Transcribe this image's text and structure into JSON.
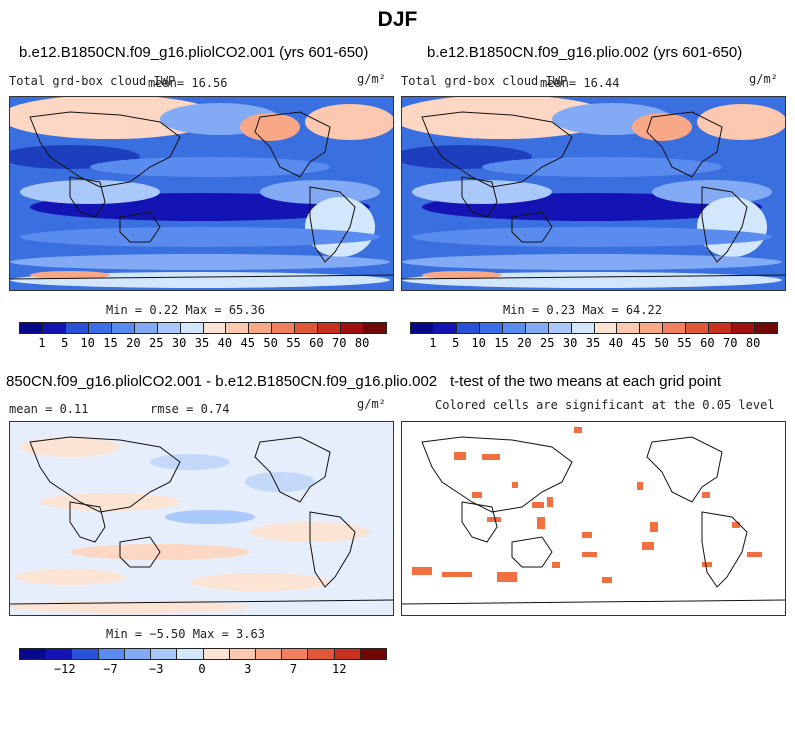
{
  "title": "DJF",
  "panels": {
    "p1": {
      "title": "b.e12.B1850CN.f09_g16.pliolCO2.001 (yrs 601-650)",
      "left_label": "Total grd-box cloud IWP",
      "mean_label": "mean=  16.56",
      "units": "g/m²",
      "minmax": "Min =   0.22 Max =  65.36"
    },
    "p2": {
      "title": "b.e12.B1850CN.f09_g16.plio.002 (yrs 601-650)",
      "left_label": "Total grd-box cloud IWP",
      "mean_label": "mean=  16.44",
      "units": "g/m²",
      "minmax": "Min =   0.23 Max =  64.22"
    },
    "p3": {
      "title": "850CN.f09_g16.pliolCO2.001 - b.e12.B1850CN.f09_g16.plio.002",
      "mean_label": "mean =    0.11",
      "rmse_label": "rmse =    0.74",
      "units": "g/m²",
      "minmax": "Min =  −5.50 Max =   3.63"
    },
    "p4": {
      "title": "t-test of the two means at each grid point",
      "subtitle": "Colored cells are significant at the 0.05 level"
    }
  },
  "colorbar_top": {
    "colors": [
      "#08088a",
      "#1414b4",
      "#2a52d8",
      "#3c6ee8",
      "#5a8cf0",
      "#82aaf5",
      "#aac8fa",
      "#d2e6fc",
      "#fce4d4",
      "#fcc8b0",
      "#f8a886",
      "#f08060",
      "#e05838",
      "#c83020",
      "#a01010",
      "#700808"
    ],
    "labels": [
      "1",
      "5",
      "10",
      "15",
      "20",
      "25",
      "30",
      "35",
      "40",
      "45",
      "50",
      "55",
      "60",
      "70",
      "80"
    ]
  },
  "colorbar_diff": {
    "colors": [
      "#08088a",
      "#1414b4",
      "#2a52d8",
      "#5a8cf0",
      "#82aaf5",
      "#aac8fa",
      "#d2e6fc",
      "#fce4d4",
      "#fcc8b0",
      "#f8a886",
      "#f08060",
      "#e05838",
      "#c83020",
      "#700808"
    ],
    "labels": [
      "−12",
      "−7",
      "−3",
      "0",
      "3",
      "7",
      "12"
    ]
  },
  "colors": {
    "ocean_base": "#3a6fe0",
    "diff_base": "#e6eefc",
    "significant": "#f07040",
    "coast": "#111111"
  }
}
